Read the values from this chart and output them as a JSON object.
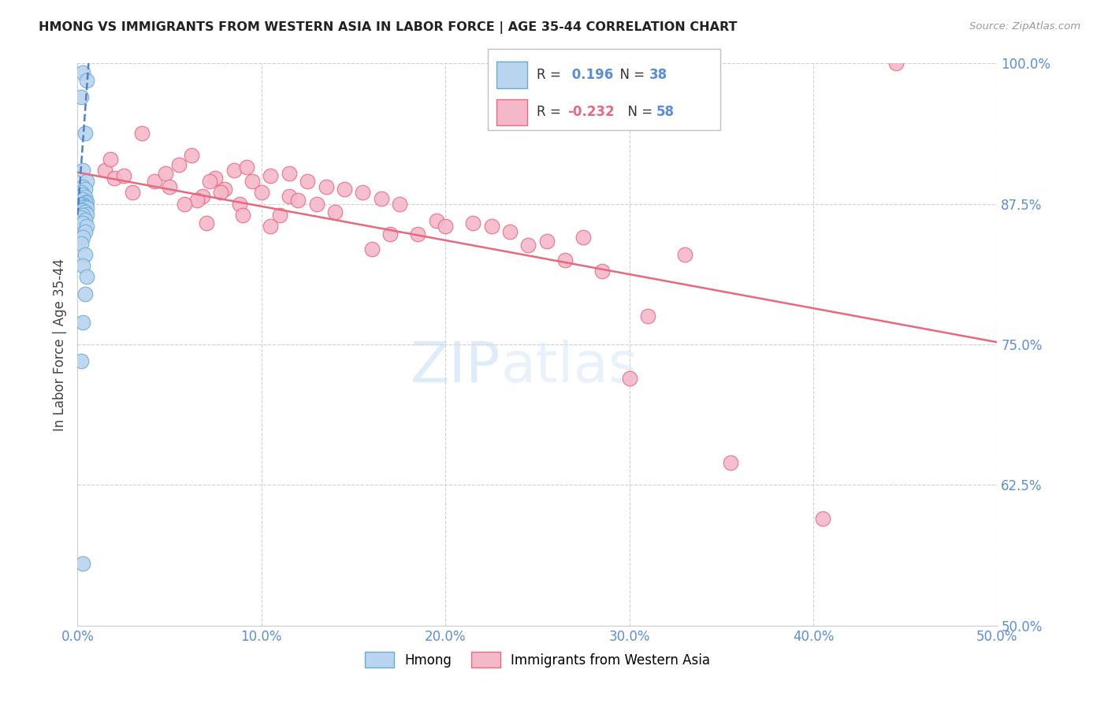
{
  "title": "HMONG VS IMMIGRANTS FROM WESTERN ASIA IN LABOR FORCE | AGE 35-44 CORRELATION CHART",
  "source": "Source: ZipAtlas.com",
  "xlabel_vals": [
    0.0,
    10.0,
    20.0,
    30.0,
    40.0,
    50.0
  ],
  "ylabel_vals": [
    50.0,
    62.5,
    75.0,
    87.5,
    100.0
  ],
  "xlim": [
    0.0,
    50.0
  ],
  "ylim": [
    50.0,
    100.0
  ],
  "hmong_color": "#b8d4ee",
  "hmong_edge_color": "#6aabd6",
  "western_asia_color": "#f5b8cb",
  "western_asia_edge_color": "#e8687e",
  "hmong_R": 0.196,
  "hmong_N": 38,
  "western_asia_R": -0.232,
  "western_asia_N": 58,
  "hmong_line_color": "#5080c8",
  "western_asia_line_color": "#e8687e",
  "ylabel": "In Labor Force | Age 35-44",
  "watermark_zip": "ZIP",
  "watermark_atlas": "atlas",
  "hmong_x": [
    0.3,
    0.5,
    0.2,
    0.4,
    0.3,
    0.5,
    0.3,
    0.4,
    0.2,
    0.3,
    0.4,
    0.3,
    0.5,
    0.4,
    0.3,
    0.2,
    0.4,
    0.3,
    0.5,
    0.2,
    0.3,
    0.4,
    0.5,
    0.3,
    0.2,
    0.4,
    0.3,
    0.5,
    0.4,
    0.3,
    0.2,
    0.4,
    0.3,
    0.5,
    0.4,
    0.3,
    0.2,
    0.3
  ],
  "hmong_y": [
    99.2,
    98.5,
    97.0,
    93.8,
    90.5,
    89.5,
    89.0,
    88.8,
    88.5,
    88.3,
    88.1,
    87.9,
    87.7,
    87.6,
    87.5,
    87.4,
    87.3,
    87.2,
    87.1,
    87.0,
    86.9,
    86.8,
    86.6,
    86.5,
    86.3,
    86.1,
    85.8,
    85.5,
    85.0,
    84.5,
    84.0,
    83.0,
    82.0,
    81.0,
    79.5,
    77.0,
    73.5,
    55.5
  ],
  "western_asia_x": [
    1.5,
    2.0,
    1.8,
    3.5,
    2.5,
    4.2,
    5.5,
    3.0,
    4.8,
    6.2,
    5.0,
    7.5,
    8.5,
    6.8,
    9.2,
    7.2,
    10.5,
    8.0,
    11.5,
    9.5,
    6.5,
    12.5,
    7.8,
    5.8,
    13.5,
    10.0,
    14.5,
    11.5,
    8.8,
    15.5,
    12.0,
    16.5,
    9.0,
    13.0,
    14.0,
    7.0,
    17.5,
    11.0,
    19.5,
    10.5,
    21.5,
    22.5,
    18.5,
    23.5,
    16.0,
    25.5,
    24.5,
    27.5,
    31.0,
    44.5,
    30.0,
    35.5,
    40.5,
    17.0,
    26.5,
    28.5,
    33.0,
    20.0
  ],
  "western_asia_y": [
    90.5,
    89.8,
    91.5,
    93.8,
    90.0,
    89.5,
    91.0,
    88.5,
    90.2,
    91.8,
    89.0,
    89.8,
    90.5,
    88.2,
    90.8,
    89.5,
    90.0,
    88.8,
    90.2,
    89.5,
    87.8,
    89.5,
    88.5,
    87.5,
    89.0,
    88.5,
    88.8,
    88.2,
    87.5,
    88.5,
    87.8,
    88.0,
    86.5,
    87.5,
    86.8,
    85.8,
    87.5,
    86.5,
    86.0,
    85.5,
    85.8,
    85.5,
    84.8,
    85.0,
    83.5,
    84.2,
    83.8,
    84.5,
    77.5,
    100.0,
    72.0,
    64.5,
    59.5,
    84.8,
    82.5,
    81.5,
    83.0,
    85.5
  ],
  "hmong_trend_x0": 0.0,
  "hmong_trend_x1": 0.6,
  "hmong_trend_y0": 86.5,
  "hmong_trend_y1": 100.0,
  "wa_trend_x0": 0.0,
  "wa_trend_x1": 50.0,
  "wa_trend_y0": 90.3,
  "wa_trend_y1": 75.2
}
